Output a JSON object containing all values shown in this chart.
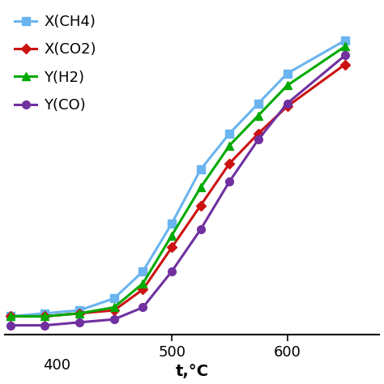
{
  "title": "",
  "xlabel": "t,°C",
  "ylabel": "",
  "xlim": [
    355,
    680
  ],
  "ylim": [
    -0.05,
    1.05
  ],
  "series": {
    "X(CH4)": {
      "x": [
        360,
        390,
        420,
        450,
        475,
        500,
        525,
        550,
        575,
        600,
        650
      ],
      "y": [
        0.01,
        0.02,
        0.03,
        0.07,
        0.16,
        0.32,
        0.5,
        0.62,
        0.72,
        0.82,
        0.93
      ],
      "color": "#6ab4f0",
      "marker": "s",
      "linewidth": 2.2,
      "markersize": 7
    },
    "X(CO2)": {
      "x": [
        360,
        390,
        420,
        450,
        475,
        500,
        525,
        550,
        575,
        600,
        650
      ],
      "y": [
        0.01,
        0.01,
        0.02,
        0.03,
        0.1,
        0.24,
        0.38,
        0.52,
        0.62,
        0.71,
        0.85
      ],
      "color": "#cc1111",
      "marker": "D",
      "linewidth": 2.2,
      "markersize": 6
    },
    "Y(H2)": {
      "x": [
        360,
        390,
        420,
        450,
        475,
        500,
        525,
        550,
        575,
        600,
        650
      ],
      "y": [
        0.01,
        0.01,
        0.02,
        0.04,
        0.12,
        0.28,
        0.44,
        0.58,
        0.68,
        0.78,
        0.91
      ],
      "color": "#00aa00",
      "marker": "^",
      "linewidth": 2.2,
      "markersize": 7
    },
    "Y(CO)": {
      "x": [
        360,
        390,
        420,
        450,
        475,
        500,
        525,
        550,
        575,
        600,
        650
      ],
      "y": [
        -0.02,
        -0.02,
        -0.01,
        0.0,
        0.04,
        0.16,
        0.3,
        0.46,
        0.6,
        0.72,
        0.88
      ],
      "color": "#7030a0",
      "marker": "o",
      "linewidth": 2.2,
      "markersize": 7
    }
  },
  "legend_order": [
    "X(CH4)",
    "X(CO2)",
    "Y(H2)",
    "Y(CO)"
  ],
  "xticks": [
    400,
    500,
    600
  ],
  "xtick_labels": [
    "400",
    "500",
    "600"
  ],
  "background_color": "#ffffff",
  "legend_fontsize": 13,
  "axis_fontsize": 13,
  "tick_fontsize": 13
}
